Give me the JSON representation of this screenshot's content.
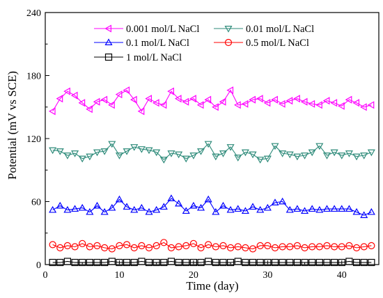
{
  "chart_data": {
    "type": "line",
    "title": "",
    "xlabel": "Time (day)",
    "ylabel": "Potential (mV vs SCE)",
    "xlim": [
      0,
      45
    ],
    "ylim": [
      0,
      240
    ],
    "xticks": [
      0,
      10,
      20,
      30,
      40
    ],
    "yticks": [
      0,
      60,
      120,
      180,
      240
    ],
    "grid": false,
    "legend_position": "top",
    "x": [
      1,
      2,
      3,
      4,
      5,
      6,
      7,
      8,
      9,
      10,
      11,
      12,
      13,
      14,
      15,
      16,
      17,
      18,
      19,
      20,
      21,
      22,
      23,
      24,
      25,
      26,
      27,
      28,
      29,
      30,
      31,
      32,
      33,
      34,
      35,
      36,
      37,
      38,
      39,
      40,
      41,
      42,
      43,
      44
    ],
    "series": [
      {
        "name": "0.001 mol/L NaCl",
        "color": "#ff00ff",
        "marker": "triangle-left",
        "values": [
          146,
          158,
          165,
          161,
          154,
          148,
          155,
          157,
          152,
          162,
          166,
          157,
          146,
          158,
          154,
          152,
          165,
          158,
          155,
          158,
          152,
          157,
          150,
          155,
          166,
          152,
          153,
          157,
          158,
          154,
          157,
          153,
          156,
          158,
          155,
          153,
          152,
          156,
          154,
          151,
          157,
          154,
          150,
          152
        ]
      },
      {
        "name": "0.01 mol/L NaCl",
        "color": "#2e8b7a",
        "marker": "triangle-down",
        "values": [
          109,
          108,
          104,
          106,
          101,
          103,
          107,
          108,
          115,
          104,
          108,
          112,
          110,
          109,
          107,
          100,
          106,
          105,
          101,
          104,
          108,
          115,
          103,
          106,
          112,
          102,
          107,
          105,
          100,
          101,
          113,
          106,
          105,
          103,
          104,
          107,
          113,
          104,
          107,
          104,
          106,
          103,
          104,
          107
        ]
      },
      {
        "name": "0.1 mol/L NaCl",
        "color": "#0000ff",
        "marker": "triangle-up",
        "values": [
          52,
          56,
          52,
          53,
          54,
          50,
          56,
          50,
          54,
          62,
          55,
          52,
          54,
          50,
          52,
          55,
          63,
          58,
          51,
          56,
          54,
          62,
          50,
          56,
          52,
          53,
          51,
          55,
          52,
          54,
          59,
          60,
          52,
          53,
          51,
          53,
          52,
          53,
          53,
          53,
          53,
          50,
          47,
          50
        ]
      },
      {
        "name": "0.5 mol/L NaCl",
        "color": "#ff0000",
        "marker": "circle",
        "values": [
          19,
          16,
          18,
          17,
          20,
          17,
          18,
          16,
          15,
          18,
          19,
          16,
          18,
          16,
          18,
          21,
          16,
          17,
          18,
          20,
          16,
          19,
          17,
          18,
          16,
          17,
          16,
          15,
          18,
          18,
          16,
          17,
          17,
          18,
          16,
          17,
          17,
          18,
          17,
          17,
          18,
          16,
          17,
          18
        ]
      },
      {
        "name": "1 mol/L NaCl",
        "color": "#000000",
        "marker": "square",
        "values": [
          2,
          2,
          3,
          2,
          2,
          2,
          2,
          2,
          3,
          2,
          2,
          2,
          3,
          2,
          2,
          2,
          3,
          2,
          2,
          2,
          2,
          3,
          2,
          2,
          2,
          3,
          2,
          2,
          2,
          2,
          2,
          2,
          2,
          2,
          2,
          2,
          2,
          2,
          2,
          2,
          3,
          2,
          2,
          2
        ]
      }
    ]
  }
}
